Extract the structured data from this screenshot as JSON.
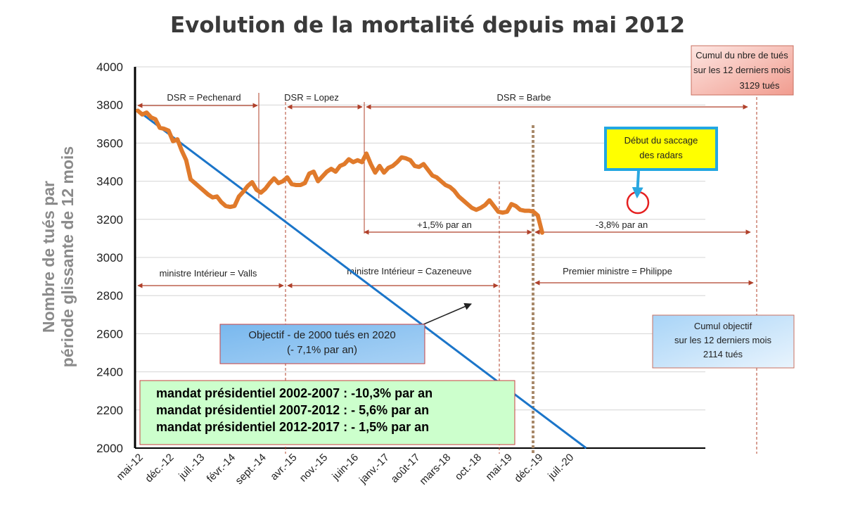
{
  "chart_data": {
    "type": "line",
    "title": "Evolution de la mortalité depuis mai 2012",
    "ylabel_line1": "Nombre de tués par",
    "ylabel_line2": "période  glissante de 12 mois",
    "ylim": [
      2000,
      4000
    ],
    "yticks": [
      "2000",
      "2200",
      "2400",
      "2600",
      "2800",
      "3000",
      "3200",
      "3400",
      "3600",
      "3800",
      "4000"
    ],
    "xtick_labels": [
      "mai-12",
      "déc.-12",
      "juil.-13",
      "févr.-14",
      "sept.-14",
      "avr.-15",
      "nov.-15",
      "juin-16",
      "janv.-17",
      "août-17",
      "mars-18",
      "oct.-18",
      "mai-19",
      "déc.-19",
      "juil.-20"
    ],
    "grid": "horizontal",
    "series": [
      {
        "kind": "actual",
        "color": "#e07a2b",
        "start_month": "mai-12",
        "values": [
          3770,
          3750,
          3760,
          3735,
          3725,
          3680,
          3675,
          3665,
          3610,
          3620,
          3560,
          3510,
          3410,
          3390,
          3370,
          3350,
          3330,
          3315,
          3320,
          3290,
          3270,
          3265,
          3270,
          3320,
          3345,
          3375,
          3395,
          3355,
          3340,
          3360,
          3390,
          3415,
          3390,
          3400,
          3420,
          3385,
          3380,
          3380,
          3390,
          3440,
          3450,
          3400,
          3425,
          3450,
          3465,
          3450,
          3480,
          3490,
          3515,
          3500,
          3510,
          3500,
          3545,
          3490,
          3445,
          3480,
          3445,
          3470,
          3480,
          3500,
          3525,
          3520,
          3510,
          3480,
          3475,
          3490,
          3460,
          3430,
          3420,
          3400,
          3380,
          3370,
          3350,
          3320,
          3300,
          3280,
          3260,
          3250,
          3260,
          3275,
          3300,
          3270,
          3240,
          3235,
          3240,
          3280,
          3270,
          3250,
          3245,
          3245,
          3240,
          3220,
          3130
        ]
      },
      {
        "kind": "objective",
        "color": "#1b75c9",
        "start_value": 3770,
        "end_value": 2000,
        "start_month": "mai-12",
        "end_month": "nov.-20"
      }
    ]
  },
  "annotations": {
    "dsr_pechenard": "DSR = Pechenard",
    "dsr_lopez": "DSR = Lopez",
    "dsr_barbe": "DSR = Barbe",
    "growth_up": "+1,5% par an",
    "growth_down": "-3,8% par an",
    "min_valls": "ministre Intérieur = Valls",
    "min_cazeneuve": "ministre Intérieur = Cazeneuve",
    "pm_philippe": "Premier ministre  = Philippe",
    "radar_line1": "Début du saccage",
    "radar_line2": "des radars",
    "cumul_line1": "Cumul du nbre de tués",
    "cumul_line2": "sur les 12 derniers mois",
    "cumul_line3": "3129 tués",
    "cobj_line1": "Cumul objectif",
    "cobj_line2": "sur les 12 derniers mois",
    "cobj_line3": "2114 tués",
    "objectif_line1": "Objectif - de 2000 tués en 2020",
    "objectif_line2": "(- 7,1% par an)",
    "mandat_1": "mandat présidentiel 2002-2007 : -10,3% par an",
    "mandat_2": "mandat présidentiel 2007-2012 : - 5,6% par an",
    "mandat_3": "mandat présidentiel 2012-2017 : - 1,5% par an"
  }
}
